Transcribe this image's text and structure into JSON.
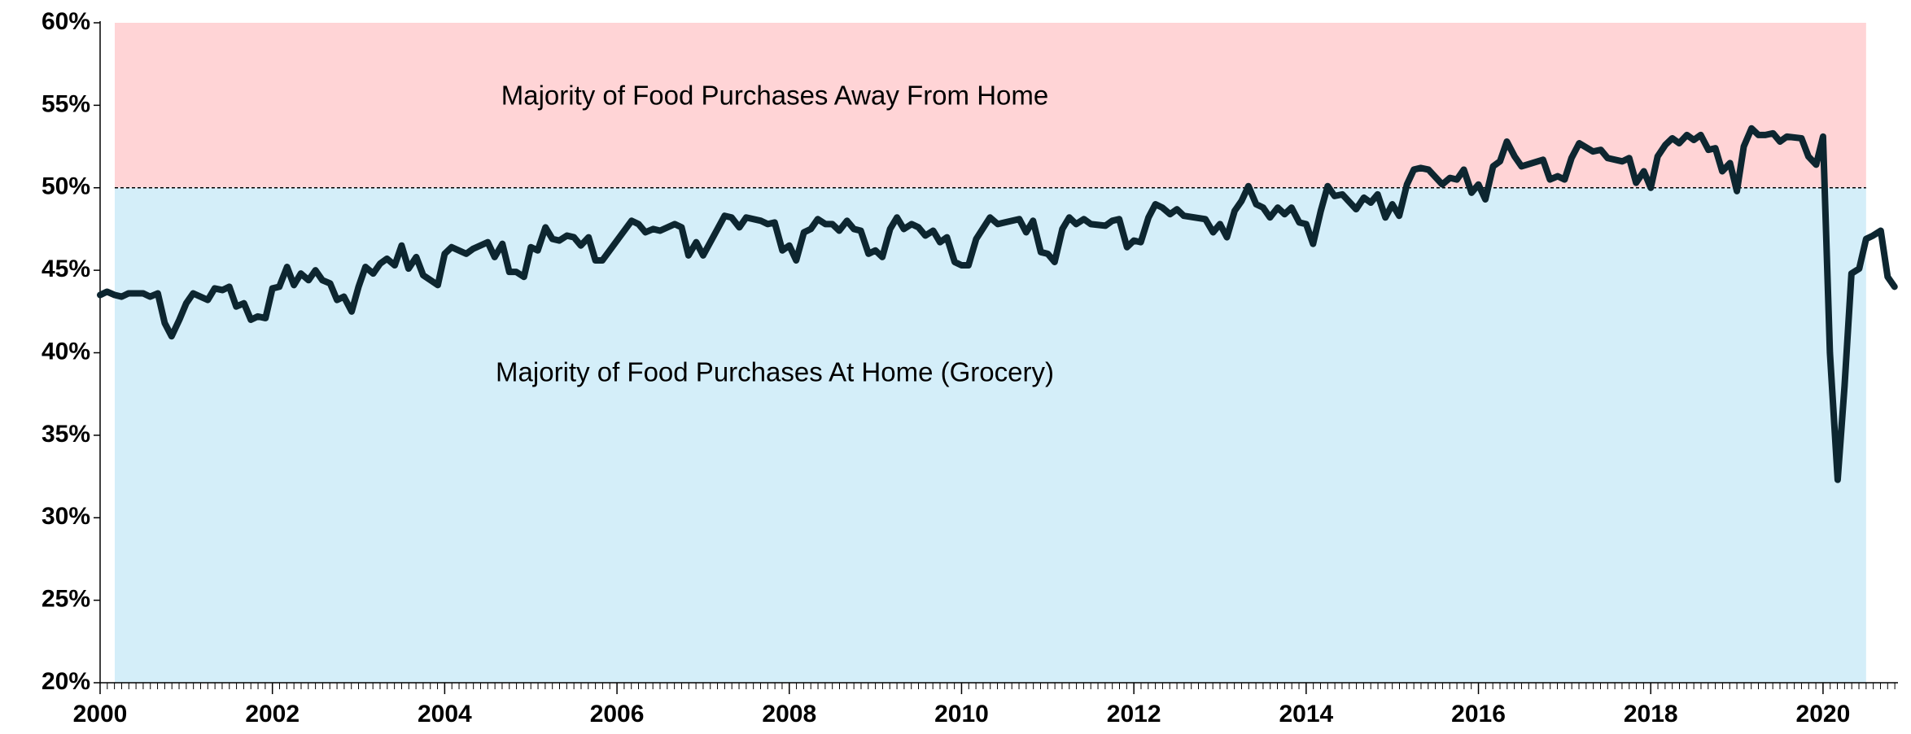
{
  "chart_data": {
    "type": "line",
    "regions": [
      {
        "label": "Majority of Food Purchases Away From Home",
        "ylim": [
          50,
          60
        ],
        "color": "#ffd4d6"
      },
      {
        "label": "Majority of Food Purchases At Home (Grocery)",
        "ylim": [
          20,
          50
        ],
        "color": "#d4eef9"
      }
    ],
    "region_x": [
      2000.17,
      2020.5
    ],
    "xlim": [
      2000,
      2020.87
    ],
    "xticks": [
      2000,
      2002,
      2004,
      2006,
      2008,
      2010,
      2012,
      2014,
      2016,
      2018,
      2020
    ],
    "ylim": [
      20,
      60
    ],
    "yticks": [
      {
        "value": 20,
        "label": "20%"
      },
      {
        "value": 25,
        "label": "25%"
      },
      {
        "value": 30,
        "label": "30%"
      },
      {
        "value": 35,
        "label": "35%"
      },
      {
        "value": 40,
        "label": "40%"
      },
      {
        "value": 45,
        "label": "45%"
      },
      {
        "value": 50,
        "label": "50%"
      },
      {
        "value": 55,
        "label": "55%"
      },
      {
        "value": 60,
        "label": "60%"
      }
    ],
    "series": [
      {
        "color": "#0d2630",
        "x": [
          2000,
          2000.08,
          2000.17,
          2000.25,
          2000.33,
          2000.5,
          2000.58,
          2000.67,
          2000.75,
          2000.83,
          2000.92,
          2001,
          2001.08,
          2001.25,
          2001.33,
          2001.42,
          2001.5,
          2001.58,
          2001.67,
          2001.75,
          2001.83,
          2001.92,
          2002,
          2002.08,
          2002.17,
          2002.25,
          2002.33,
          2002.42,
          2002.5,
          2002.58,
          2002.67,
          2002.75,
          2002.83,
          2002.92,
          2003,
          2003.08,
          2003.17,
          2003.25,
          2003.33,
          2003.42,
          2003.5,
          2003.58,
          2003.67,
          2003.75,
          2003.92,
          2004,
          2004.08,
          2004.25,
          2004.33,
          2004.5,
          2004.58,
          2004.67,
          2004.75,
          2004.83,
          2004.92,
          2005,
          2005.08,
          2005.17,
          2005.25,
          2005.33,
          2005.42,
          2005.5,
          2005.58,
          2005.67,
          2005.75,
          2005.83,
          2006,
          2006.17,
          2006.25,
          2006.33,
          2006.42,
          2006.5,
          2006.67,
          2006.75,
          2006.83,
          2006.92,
          2007,
          2007.25,
          2007.33,
          2007.42,
          2007.5,
          2007.67,
          2007.75,
          2007.83,
          2007.92,
          2008,
          2008.08,
          2008.17,
          2008.25,
          2008.33,
          2008.42,
          2008.5,
          2008.58,
          2008.67,
          2008.75,
          2008.83,
          2008.92,
          2009,
          2009.08,
          2009.17,
          2009.25,
          2009.33,
          2009.42,
          2009.5,
          2009.58,
          2009.67,
          2009.75,
          2009.83,
          2009.92,
          2010,
          2010.08,
          2010.17,
          2010.33,
          2010.42,
          2010.5,
          2010.67,
          2010.75,
          2010.83,
          2010.92,
          2011,
          2011.08,
          2011.17,
          2011.25,
          2011.33,
          2011.42,
          2011.5,
          2011.67,
          2011.75,
          2011.83,
          2011.92,
          2012,
          2012.08,
          2012.17,
          2012.25,
          2012.33,
          2012.42,
          2012.5,
          2012.58,
          2012.83,
          2012.92,
          2013,
          2013.08,
          2013.17,
          2013.25,
          2013.33,
          2013.42,
          2013.5,
          2013.58,
          2013.67,
          2013.75,
          2013.83,
          2013.92,
          2014,
          2014.08,
          2014.17,
          2014.25,
          2014.33,
          2014.42,
          2014.58,
          2014.67,
          2014.75,
          2014.83,
          2014.92,
          2015,
          2015.08,
          2015.17,
          2015.25,
          2015.33,
          2015.42,
          2015.58,
          2015.67,
          2015.75,
          2015.83,
          2015.92,
          2016,
          2016.08,
          2016.17,
          2016.25,
          2016.33,
          2016.42,
          2016.5,
          2016.75,
          2016.83,
          2016.92,
          2017,
          2017.08,
          2017.17,
          2017.33,
          2017.42,
          2017.5,
          2017.67,
          2017.75,
          2017.83,
          2017.92,
          2018,
          2018.08,
          2018.17,
          2018.25,
          2018.33,
          2018.42,
          2018.5,
          2018.58,
          2018.67,
          2018.75,
          2018.83,
          2018.92,
          2019,
          2019.08,
          2019.17,
          2019.25,
          2019.33,
          2019.42,
          2019.5,
          2019.58,
          2019.75,
          2019.83,
          2019.92,
          2020,
          2020.08,
          2020.17,
          2020.25,
          2020.33,
          2020.42,
          2020.5,
          2020.58,
          2020.67,
          2020.75,
          2020.83
        ],
        "values": [
          43.5,
          43.7,
          43.5,
          43.4,
          43.6,
          43.6,
          43.4,
          43.6,
          41.8,
          41.0,
          42.0,
          43.0,
          43.6,
          43.2,
          43.9,
          43.8,
          44.0,
          42.8,
          43.0,
          42.0,
          42.2,
          42.1,
          43.9,
          44.0,
          45.2,
          44.1,
          44.8,
          44.4,
          45.0,
          44.4,
          44.2,
          43.2,
          43.4,
          42.5,
          44.0,
          45.2,
          44.8,
          45.4,
          45.7,
          45.3,
          46.5,
          45.1,
          45.8,
          44.7,
          44.1,
          46.0,
          46.4,
          46.0,
          46.3,
          46.7,
          45.8,
          46.6,
          44.9,
          44.9,
          44.6,
          46.4,
          46.2,
          47.6,
          46.9,
          46.8,
          47.1,
          47.0,
          46.5,
          47.0,
          45.6,
          45.6,
          46.8,
          48.0,
          47.8,
          47.3,
          47.5,
          47.4,
          47.8,
          47.6,
          45.9,
          46.7,
          45.9,
          48.3,
          48.2,
          47.6,
          48.2,
          48.0,
          47.8,
          47.9,
          46.2,
          46.5,
          45.6,
          47.3,
          47.5,
          48.1,
          47.8,
          47.8,
          47.4,
          48.0,
          47.5,
          47.4,
          46.0,
          46.2,
          45.8,
          47.5,
          48.2,
          47.5,
          47.8,
          47.6,
          47.1,
          47.4,
          46.7,
          47.0,
          45.5,
          45.3,
          45.3,
          46.9,
          48.2,
          47.8,
          47.9,
          48.1,
          47.3,
          48.0,
          46.1,
          46.0,
          45.5,
          47.5,
          48.2,
          47.8,
          48.1,
          47.8,
          47.7,
          48.0,
          48.1,
          46.4,
          46.8,
          46.7,
          48.2,
          49.0,
          48.8,
          48.4,
          48.7,
          48.3,
          48.1,
          47.3,
          47.8,
          47.0,
          48.6,
          49.2,
          50.1,
          49.0,
          48.8,
          48.2,
          48.8,
          48.4,
          48.8,
          47.9,
          47.8,
          46.6,
          48.6,
          50.1,
          49.5,
          49.6,
          48.7,
          49.4,
          49.1,
          49.6,
          48.2,
          49.0,
          48.3,
          50.2,
          51.1,
          51.2,
          51.1,
          50.2,
          50.6,
          50.5,
          51.1,
          49.7,
          50.2,
          49.3,
          51.3,
          51.6,
          52.8,
          51.9,
          51.3,
          51.7,
          50.5,
          50.7,
          50.5,
          51.8,
          52.7,
          52.2,
          52.3,
          51.8,
          51.6,
          51.8,
          50.3,
          51.0,
          50.0,
          51.9,
          52.6,
          53.0,
          52.7,
          53.2,
          52.9,
          53.2,
          52.3,
          52.4,
          51.0,
          51.5,
          49.8,
          52.5,
          53.6,
          53.2,
          53.2,
          53.3,
          52.8,
          53.1,
          53.0,
          51.9,
          51.4,
          53.1,
          40.0,
          32.3,
          38.0,
          44.8,
          45.1,
          46.9,
          47.1,
          47.4,
          44.6,
          44.0
        ]
      }
    ]
  }
}
